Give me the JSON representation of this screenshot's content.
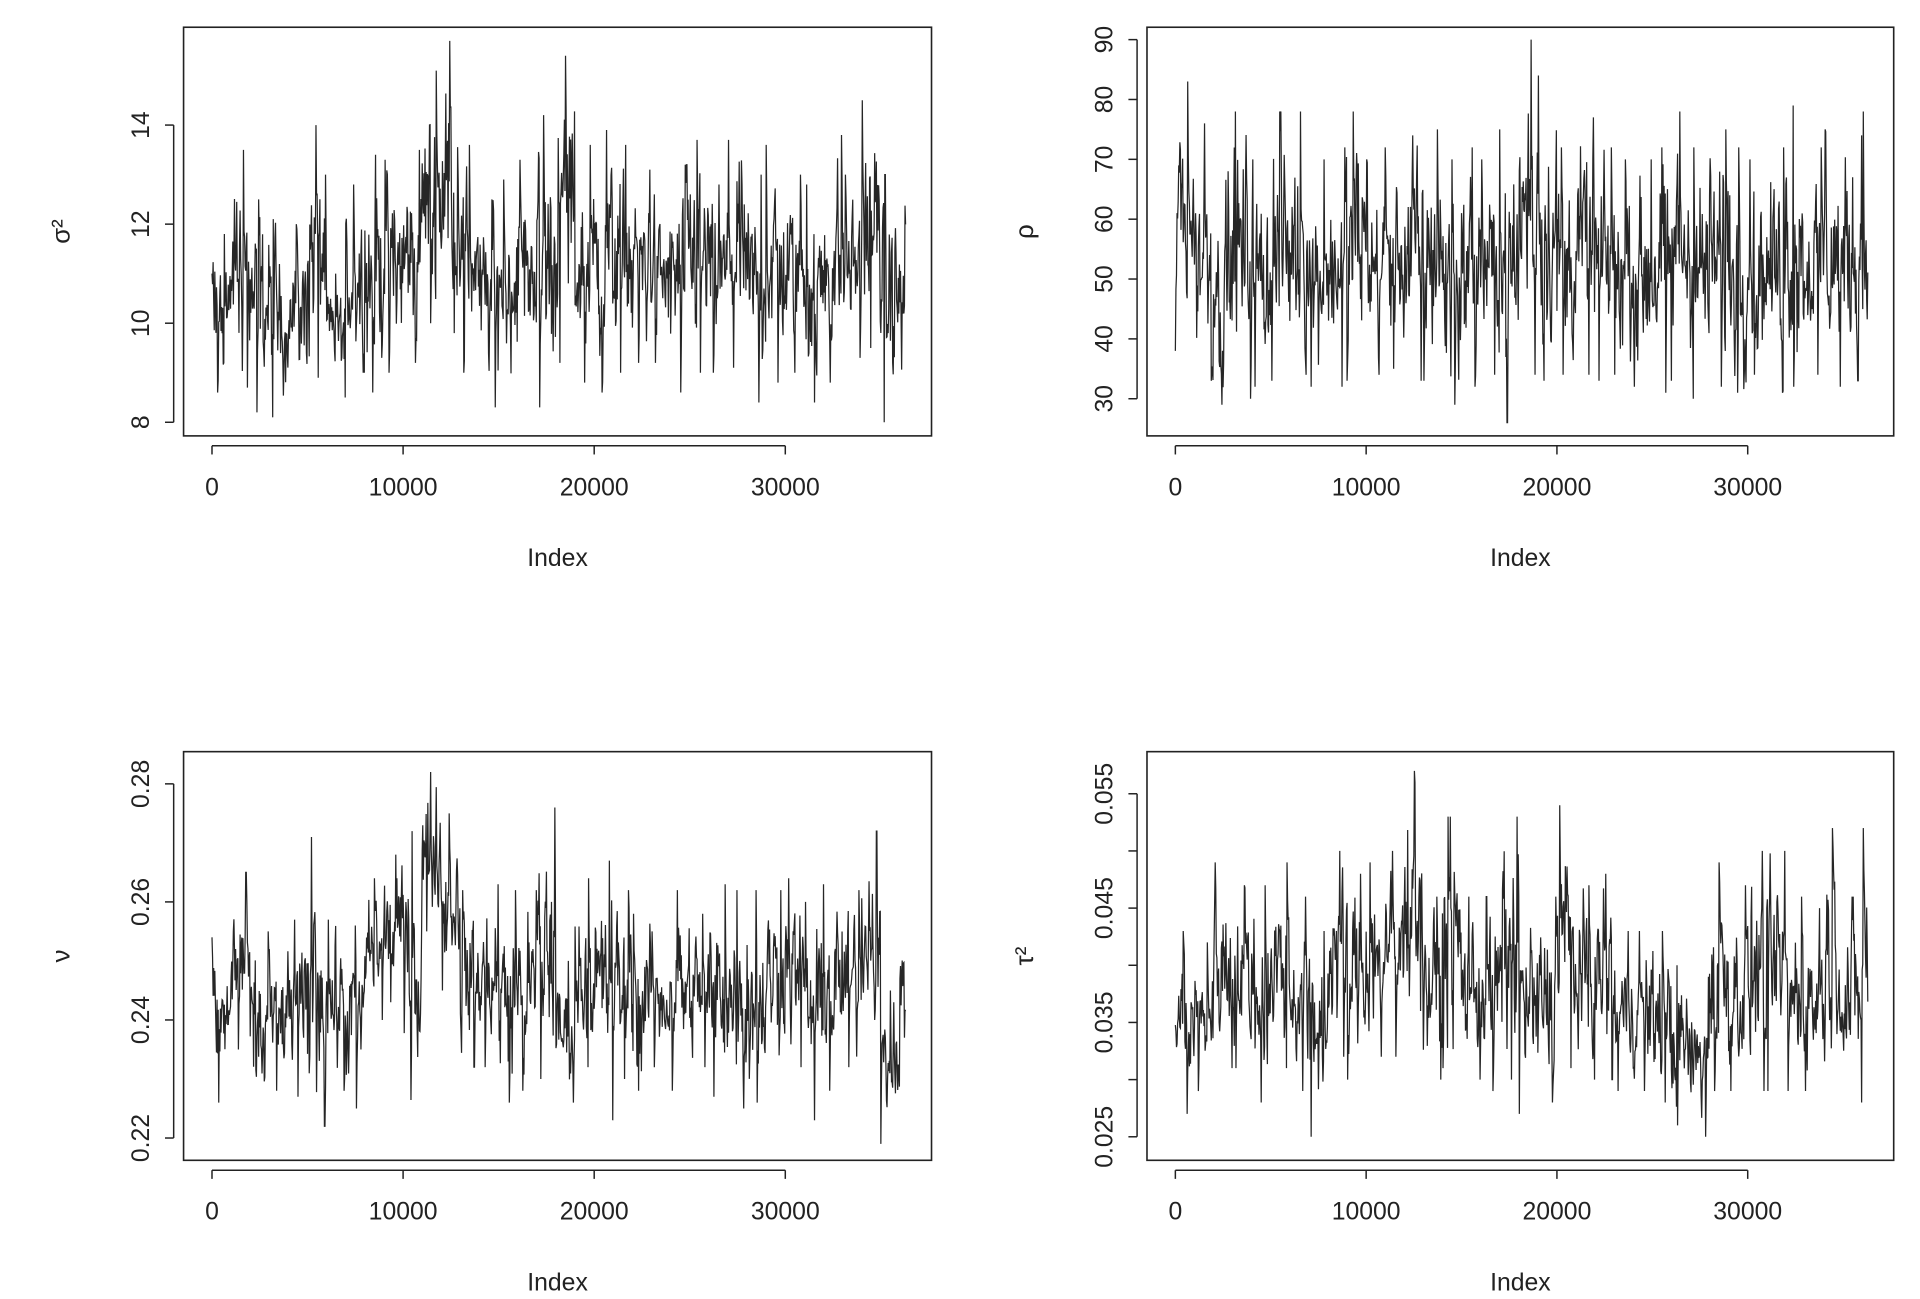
{
  "chart_data": [
    {
      "type": "line",
      "title": "",
      "xlabel": "Index",
      "ylabel": "σ²",
      "xlim": [
        0,
        36300
      ],
      "ylim": [
        7.8,
        15.8
      ],
      "xticks": [
        0,
        10000,
        20000,
        30000
      ],
      "yticks": [
        8,
        10,
        12,
        14
      ],
      "ytick_labels": [
        "8",
        "10",
        "12",
        "14"
      ],
      "bin_width": 1000,
      "bins_low_high": [
        [
          8.6,
          11.8
        ],
        [
          8.7,
          13.5
        ],
        [
          8.2,
          12.5
        ],
        [
          8.1,
          12.1
        ],
        [
          8.5,
          12.0
        ],
        [
          8.9,
          14.0
        ],
        [
          8.5,
          11.0
        ],
        [
          9.0,
          12.8
        ],
        [
          8.6,
          13.4
        ],
        [
          9.0,
          13.3
        ],
        [
          9.2,
          13.5
        ],
        [
          10.0,
          15.1
        ],
        [
          9.8,
          15.7
        ],
        [
          9.0,
          13.6
        ],
        [
          8.3,
          12.5
        ],
        [
          8.6,
          12.9
        ],
        [
          8.9,
          13.3
        ],
        [
          8.3,
          14.2
        ],
        [
          9.2,
          15.4
        ],
        [
          8.8,
          13.6
        ],
        [
          8.6,
          13.9
        ],
        [
          9.0,
          13.6
        ],
        [
          9.2,
          13.1
        ],
        [
          9.2,
          12.6
        ],
        [
          8.6,
          13.2
        ],
        [
          9.0,
          13.7
        ],
        [
          9.0,
          12.8
        ],
        [
          9.1,
          13.7
        ],
        [
          8.4,
          13.0
        ],
        [
          8.8,
          13.6
        ],
        [
          9.0,
          13.0
        ],
        [
          8.4,
          12.8
        ],
        [
          8.8,
          13.8
        ],
        [
          9.3,
          13.0
        ],
        [
          9.5,
          14.5
        ],
        [
          8.0,
          13.0
        ],
        [
          8.1,
          13.1
        ]
      ]
    },
    {
      "type": "line",
      "title": "",
      "xlabel": "Index",
      "ylabel": "ρ",
      "xlim": [
        0,
        36300
      ],
      "ylim": [
        24,
        92
      ],
      "xticks": [
        0,
        10000,
        20000,
        30000
      ],
      "yticks": [
        30,
        40,
        50,
        60,
        70,
        80,
        90
      ],
      "ytick_labels": [
        "30",
        "40",
        "50",
        "60",
        "70",
        "80",
        "90"
      ],
      "bin_width": 1000,
      "bins_low_high": [
        [
          38,
          83
        ],
        [
          33,
          76
        ],
        [
          29,
          68
        ],
        [
          30,
          78
        ],
        [
          32,
          70
        ],
        [
          33,
          78
        ],
        [
          34,
          78
        ],
        [
          32,
          70
        ],
        [
          32,
          72
        ],
        [
          33,
          78
        ],
        [
          34,
          70
        ],
        [
          35,
          72
        ],
        [
          33,
          74
        ],
        [
          33,
          75
        ],
        [
          29,
          70
        ],
        [
          32,
          72
        ],
        [
          34,
          70
        ],
        [
          26,
          75
        ],
        [
          34,
          90
        ],
        [
          33,
          84
        ],
        [
          34,
          72
        ],
        [
          34,
          77
        ],
        [
          33,
          72
        ],
        [
          34,
          70
        ],
        [
          32,
          70
        ],
        [
          31,
          72
        ],
        [
          33,
          78
        ],
        [
          30,
          72
        ],
        [
          32,
          75
        ],
        [
          31,
          72
        ],
        [
          34,
          70
        ],
        [
          31,
          72
        ],
        [
          32,
          79
        ],
        [
          34,
          72
        ],
        [
          32,
          75
        ],
        [
          33,
          74
        ],
        [
          27,
          78
        ]
      ]
    },
    {
      "type": "line",
      "title": "",
      "xlabel": "Index",
      "ylabel": "ν",
      "xlim": [
        0,
        36300
      ],
      "ylim": [
        0.216,
        0.285
      ],
      "xticks": [
        0,
        10000,
        20000,
        30000
      ],
      "yticks": [
        0.22,
        0.24,
        0.26,
        0.28
      ],
      "ytick_labels": [
        "0.22",
        "0.24",
        "0.26",
        "0.28"
      ],
      "bin_width": 1000,
      "bins_low_high": [
        [
          0.226,
          0.254
        ],
        [
          0.235,
          0.265
        ],
        [
          0.22,
          0.255
        ],
        [
          0.228,
          0.252
        ],
        [
          0.227,
          0.257
        ],
        [
          0.222,
          0.271
        ],
        [
          0.228,
          0.257
        ],
        [
          0.225,
          0.256
        ],
        [
          0.24,
          0.264
        ],
        [
          0.243,
          0.268
        ],
        [
          0.225,
          0.272
        ],
        [
          0.255,
          0.282
        ],
        [
          0.245,
          0.275
        ],
        [
          0.232,
          0.262
        ],
        [
          0.232,
          0.263
        ],
        [
          0.226,
          0.262
        ],
        [
          0.228,
          0.262
        ],
        [
          0.23,
          0.276
        ],
        [
          0.226,
          0.25
        ],
        [
          0.232,
          0.264
        ],
        [
          0.223,
          0.267
        ],
        [
          0.23,
          0.262
        ],
        [
          0.228,
          0.258
        ],
        [
          0.232,
          0.255
        ],
        [
          0.228,
          0.262
        ],
        [
          0.232,
          0.258
        ],
        [
          0.227,
          0.263
        ],
        [
          0.225,
          0.262
        ],
        [
          0.226,
          0.262
        ],
        [
          0.234,
          0.262
        ],
        [
          0.232,
          0.264
        ],
        [
          0.223,
          0.26
        ],
        [
          0.228,
          0.263
        ],
        [
          0.232,
          0.262
        ],
        [
          0.24,
          0.272
        ],
        [
          0.219,
          0.245
        ],
        [
          0.237,
          0.256
        ]
      ]
    },
    {
      "type": "line",
      "title": "",
      "xlabel": "Index",
      "ylabel": "τ²",
      "xlim": [
        0,
        36300
      ],
      "ylim": [
        0.0235,
        0.0585
      ],
      "xticks": [
        0,
        10000,
        20000,
        30000
      ],
      "yticks": [
        0.025,
        0.03,
        0.035,
        0.04,
        0.045,
        0.05,
        0.055
      ],
      "ytick_labels": [
        "0.025",
        "",
        "0.035",
        "",
        "0.045",
        "",
        "0.055"
      ],
      "bin_width": 1000,
      "bins_low_high": [
        [
          0.027,
          0.043
        ],
        [
          0.029,
          0.042
        ],
        [
          0.031,
          0.049
        ],
        [
          0.031,
          0.047
        ],
        [
          0.028,
          0.047
        ],
        [
          0.031,
          0.049
        ],
        [
          0.029,
          0.046
        ],
        [
          0.025,
          0.043
        ],
        [
          0.032,
          0.05
        ],
        [
          0.03,
          0.048
        ],
        [
          0.032,
          0.049
        ],
        [
          0.032,
          0.05
        ],
        [
          0.036,
          0.057
        ],
        [
          0.03,
          0.046
        ],
        [
          0.031,
          0.053
        ],
        [
          0.03,
          0.046
        ],
        [
          0.029,
          0.046
        ],
        [
          0.03,
          0.053
        ],
        [
          0.027,
          0.046
        ],
        [
          0.028,
          0.046
        ],
        [
          0.031,
          0.054
        ],
        [
          0.03,
          0.047
        ],
        [
          0.03,
          0.048
        ],
        [
          0.029,
          0.043
        ],
        [
          0.029,
          0.043
        ],
        [
          0.028,
          0.043
        ],
        [
          0.026,
          0.04
        ],
        [
          0.025,
          0.039
        ],
        [
          0.029,
          0.049
        ],
        [
          0.029,
          0.047
        ],
        [
          0.029,
          0.05
        ],
        [
          0.029,
          0.05
        ],
        [
          0.029,
          0.046
        ],
        [
          0.029,
          0.045
        ],
        [
          0.03,
          0.052
        ],
        [
          0.028,
          0.046
        ],
        [
          0.029,
          0.052
        ]
      ]
    }
  ]
}
